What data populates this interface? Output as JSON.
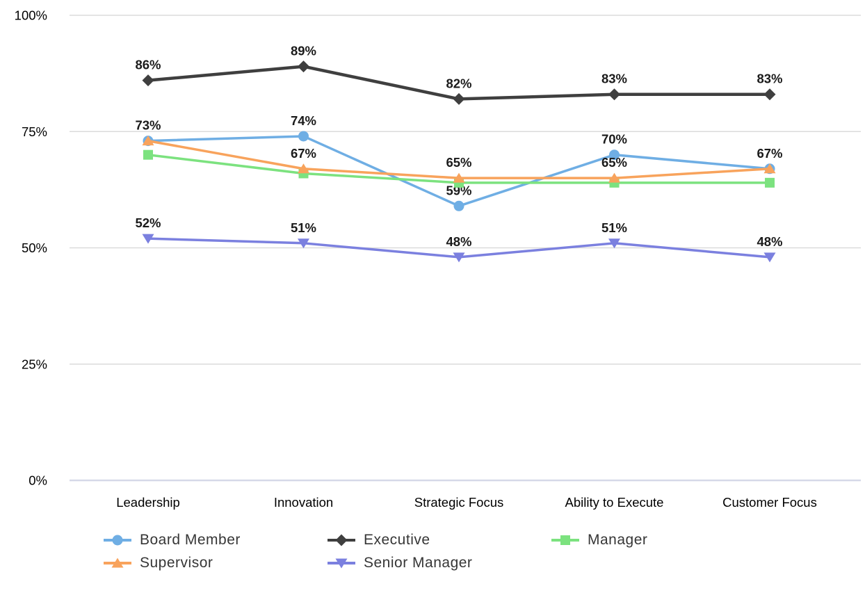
{
  "chart_data": {
    "type": "line",
    "title": "",
    "categories": [
      "Leadership",
      "Innovation",
      "Strategic Focus",
      "Ability to Execute",
      "Customer Focus"
    ],
    "y_axis": {
      "min": 0,
      "max": 100,
      "ticks": [
        {
          "value": 100,
          "label": "100%"
        },
        {
          "value": 75,
          "label": "75%"
        },
        {
          "value": 50,
          "label": "50%"
        },
        {
          "value": 25,
          "label": "25%"
        },
        {
          "value": 0,
          "label": "0%"
        }
      ]
    },
    "grid": true,
    "label_suffix": "%",
    "legend_position": "bottom",
    "series": [
      {
        "name": "Board Member",
        "color": "#6FAEE4",
        "marker": "circle",
        "values": [
          73,
          74,
          59,
          70,
          67
        ],
        "labels_shown": [
          true,
          true,
          true,
          true,
          false
        ]
      },
      {
        "name": "Executive",
        "color": "#3F3F3F",
        "marker": "diamond",
        "values": [
          86,
          89,
          82,
          83,
          83
        ],
        "labels_shown": [
          true,
          true,
          true,
          true,
          true
        ]
      },
      {
        "name": "Manager",
        "color": "#7CE27F",
        "marker": "square",
        "values": [
          70,
          66,
          64,
          64,
          64
        ],
        "labels_shown": [
          false,
          false,
          false,
          false,
          false
        ]
      },
      {
        "name": "Supervisor",
        "color": "#F8A35C",
        "marker": "triangle-up",
        "values": [
          73,
          67,
          65,
          65,
          67
        ],
        "labels_shown": [
          false,
          true,
          true,
          true,
          true
        ]
      },
      {
        "name": "Senior Manager",
        "color": "#7B80DF",
        "marker": "triangle-down",
        "values": [
          52,
          51,
          48,
          51,
          48
        ],
        "labels_shown": [
          true,
          true,
          true,
          true,
          true
        ]
      }
    ],
    "colors": {
      "grid_line": "#DBDBDB",
      "zero_axis_line": "#D6D9E8",
      "axis_text": "#000000",
      "data_label_text": "#1A1A1A"
    }
  }
}
